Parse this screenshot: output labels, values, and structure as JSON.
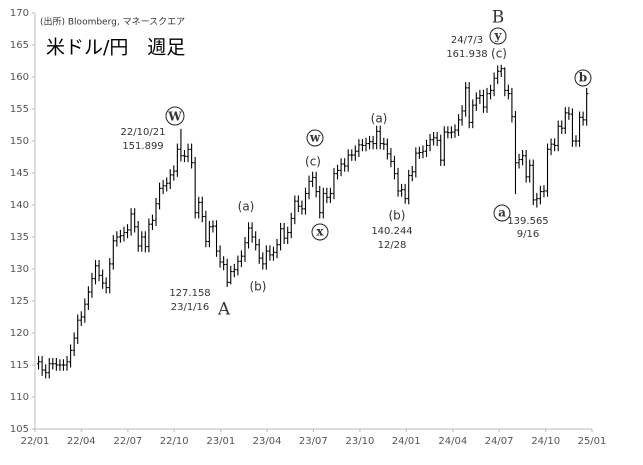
{
  "chart_data": {
    "type": "ohlc",
    "title": "米ドル/円　週足",
    "source": "(出所) Bloomberg, マネースクエア",
    "color": "#000000",
    "grid": false,
    "xlim": [
      0,
      156.5
    ],
    "ylim": [
      105,
      170
    ],
    "xticks": [
      {
        "value": 0,
        "label": "22/01"
      },
      {
        "value": 13,
        "label": "22/04"
      },
      {
        "value": 26.1,
        "label": "22/07"
      },
      {
        "value": 39.1,
        "label": "22/10"
      },
      {
        "value": 52.2,
        "label": "23/01"
      },
      {
        "value": 65.2,
        "label": "23/04"
      },
      {
        "value": 78.2,
        "label": "23/07"
      },
      {
        "value": 91.3,
        "label": "23/10"
      },
      {
        "value": 104.3,
        "label": "24/01"
      },
      {
        "value": 117.4,
        "label": "24/04"
      },
      {
        "value": 130.4,
        "label": "24/07"
      },
      {
        "value": 143.5,
        "label": "24/10"
      },
      {
        "value": 156.5,
        "label": "25/01"
      }
    ],
    "yticks": [
      105,
      110,
      115,
      120,
      125,
      130,
      135,
      140,
      145,
      150,
      155,
      160,
      165,
      170
    ],
    "annotations": [
      "W",
      "22/10/21",
      "151.899",
      "127.158",
      "23/1/16",
      "A",
      "(a)",
      "(b)",
      "w",
      "(c)",
      "x",
      "(a)",
      "(b)",
      "140.244",
      "12/28",
      "B",
      "y",
      "24/7/3",
      "161.938",
      "(c)",
      "a",
      "139.565",
      "9/16",
      "b"
    ],
    "x": [
      1,
      2,
      3,
      4,
      5,
      6,
      7,
      8,
      9,
      10,
      11,
      12,
      13,
      14,
      15,
      16,
      17,
      18,
      19,
      20,
      21,
      22,
      23,
      24,
      25,
      26,
      27,
      28,
      29,
      30,
      31,
      32,
      33,
      34,
      35,
      36,
      37,
      38,
      39,
      40,
      41,
      42,
      43,
      44,
      45,
      46,
      47,
      48,
      49,
      50,
      51,
      52,
      53,
      54,
      55,
      56,
      57,
      58,
      59,
      60,
      61,
      62,
      63,
      64,
      65,
      66,
      67,
      68,
      69,
      70,
      71,
      72,
      73,
      74,
      75,
      76,
      77,
      78,
      79,
      80,
      81,
      82,
      83,
      84,
      85,
      86,
      87,
      88,
      89,
      90,
      91,
      92,
      93,
      94,
      95,
      96,
      97,
      98,
      99,
      100,
      101,
      102,
      103,
      104,
      105,
      106,
      107,
      108,
      109,
      110,
      111,
      112,
      113,
      114,
      115,
      116,
      117,
      118,
      119,
      120,
      121,
      122,
      123,
      124,
      125,
      126,
      127,
      128,
      129,
      130,
      131,
      132,
      133,
      134,
      135,
      136,
      137,
      138,
      139,
      140,
      141,
      142,
      143,
      144,
      145,
      146,
      147,
      148,
      149,
      150,
      151,
      152,
      153,
      154,
      155
    ],
    "open": [
      115.2,
      115.5,
      114.2,
      113.8,
      115.2,
      115.2,
      115.0,
      115.0,
      115.0,
      115.5,
      117.3,
      119.2,
      122.0,
      122.5,
      124.5,
      126.4,
      128.5,
      130.5,
      129.0,
      127.8,
      127.1,
      130.8,
      134.4,
      135.0,
      135.2,
      135.7,
      136.1,
      138.6,
      136.6,
      133.6,
      135.0,
      133.5,
      137.0,
      137.6,
      140.2,
      142.6,
      143.0,
      143.4,
      144.7,
      145.3,
      148.7,
      147.7,
      147.6,
      148.7,
      146.6,
      138.8,
      140.4,
      138.2,
      134.3,
      136.6,
      136.7,
      132.8,
      131.1,
      130.7,
      127.9,
      129.6,
      129.9,
      131.2,
      132.0,
      134.1,
      136.4,
      135.0,
      133.8,
      131.7,
      130.8,
      132.8,
      132.2,
      132.6,
      133.8,
      136.3,
      134.8,
      135.7,
      137.9,
      140.6,
      139.8,
      139.4,
      141.8,
      143.7,
      144.3,
      142.1,
      138.8,
      141.8,
      141.2,
      141.8,
      144.9,
      145.4,
      146.4,
      146.1,
      147.8,
      147.8,
      148.4,
      149.4,
      149.3,
      149.6,
      149.9,
      149.6,
      151.5,
      149.6,
      149.5,
      148.0,
      146.8,
      144.9,
      142.2,
      142.4,
      141.0,
      144.6,
      145.2,
      148.1,
      148.2,
      148.4,
      149.3,
      150.2,
      150.5,
      150.1,
      147.0,
      151.4,
      151.3,
      151.4,
      151.7,
      153.3,
      154.7,
      158.3,
      152.9,
      155.6,
      156.7,
      157.1,
      155.3,
      157.4,
      157.9,
      159.8,
      160.9,
      161.3,
      157.9,
      157.4,
      153.8,
      146.6,
      147.1,
      147.7,
      144.4,
      146.2,
      140.8,
      141.0,
      142.1,
      142.2,
      148.7,
      149.5,
      149.3,
      152.3,
      152.0,
      154.4,
      154.2,
      150.0,
      150.0,
      153.7,
      153.3
    ],
    "high": [
      116.4,
      116.4,
      115.1,
      116.1,
      116.1,
      116.1,
      115.9,
      115.9,
      116.4,
      118.2,
      120.1,
      122.9,
      123.4,
      125.4,
      127.3,
      129.4,
      131.4,
      131.4,
      129.9,
      128.7,
      131.7,
      135.3,
      135.9,
      136.1,
      136.6,
      137.0,
      139.5,
      139.5,
      137.5,
      135.9,
      135.9,
      137.9,
      138.5,
      141.1,
      143.5,
      143.9,
      144.3,
      145.6,
      146.2,
      149.6,
      151.9,
      148.6,
      149.6,
      149.6,
      147.5,
      141.3,
      141.3,
      139.1,
      137.5,
      137.6,
      137.6,
      133.7,
      132.0,
      131.6,
      130.5,
      130.8,
      132.1,
      132.9,
      135.0,
      137.3,
      137.3,
      135.9,
      134.7,
      132.6,
      133.7,
      133.7,
      133.5,
      134.7,
      137.2,
      137.2,
      136.6,
      138.8,
      141.5,
      141.5,
      140.7,
      142.7,
      144.6,
      145.2,
      145.2,
      143.0,
      142.7,
      142.7,
      142.7,
      145.8,
      146.3,
      147.3,
      147.3,
      148.7,
      148.7,
      149.3,
      150.3,
      150.3,
      150.5,
      150.8,
      150.8,
      152.4,
      152.4,
      150.5,
      150.4,
      148.9,
      147.7,
      145.8,
      143.3,
      143.3,
      145.5,
      146.1,
      149.0,
      149.1,
      149.3,
      150.2,
      151.1,
      151.4,
      151.4,
      151.0,
      152.3,
      152.3,
      152.3,
      152.6,
      154.2,
      155.6,
      159.2,
      159.2,
      156.5,
      157.6,
      158.0,
      158.0,
      158.3,
      158.8,
      160.7,
      161.8,
      161.9,
      161.5,
      158.8,
      158.3,
      154.7,
      148.0,
      148.6,
      148.6,
      147.1,
      147.1,
      141.9,
      143.0,
      143.1,
      149.6,
      150.4,
      150.4,
      153.2,
      153.2,
      155.3,
      155.3,
      155.1,
      150.9,
      154.6,
      154.6,
      158.3
    ],
    "low": [
      114.3,
      113.3,
      112.9,
      112.9,
      114.3,
      114.1,
      114.1,
      114.1,
      114.1,
      114.6,
      116.4,
      118.3,
      121.1,
      121.6,
      123.6,
      125.5,
      127.6,
      128.1,
      126.9,
      126.2,
      126.2,
      129.9,
      133.5,
      134.1,
      134.3,
      134.8,
      135.2,
      135.7,
      132.7,
      132.7,
      132.6,
      132.6,
      136.1,
      136.7,
      139.3,
      141.7,
      142.1,
      142.5,
      143.8,
      144.4,
      146.8,
      146.7,
      146.7,
      145.7,
      137.9,
      137.9,
      137.3,
      133.4,
      133.4,
      135.7,
      131.9,
      130.2,
      129.8,
      127.2,
      127.6,
      128.7,
      129.0,
      130.3,
      131.1,
      133.2,
      134.1,
      132.9,
      130.8,
      129.9,
      129.9,
      131.3,
      131.3,
      131.7,
      132.9,
      133.9,
      133.9,
      134.8,
      137.0,
      138.9,
      138.5,
      138.5,
      140.9,
      142.8,
      141.2,
      137.9,
      137.9,
      140.3,
      140.3,
      140.9,
      144.0,
      144.5,
      145.2,
      145.2,
      146.9,
      146.9,
      147.5,
      148.4,
      148.4,
      148.7,
      148.7,
      148.7,
      148.7,
      148.6,
      147.1,
      145.9,
      144.0,
      141.3,
      141.3,
      140.2,
      140.1,
      143.7,
      144.3,
      147.2,
      147.3,
      147.5,
      148.4,
      149.3,
      149.2,
      146.1,
      146.1,
      150.4,
      150.4,
      150.5,
      150.8,
      152.4,
      153.8,
      152.0,
      152.0,
      154.7,
      155.8,
      154.4,
      154.4,
      156.5,
      157.0,
      158.9,
      160.0,
      157.0,
      156.5,
      152.9,
      141.7,
      145.7,
      146.2,
      143.5,
      143.5,
      140.0,
      139.6,
      140.1,
      141.2,
      141.3,
      147.8,
      148.4,
      148.4,
      151.1,
      151.1,
      153.3,
      149.1,
      149.1,
      149.1,
      152.4,
      152.4
    ],
    "close": [
      115.5,
      114.2,
      113.8,
      115.2,
      115.2,
      115.0,
      115.0,
      115.0,
      115.5,
      117.3,
      119.2,
      122.0,
      122.5,
      124.5,
      126.4,
      128.5,
      130.5,
      129.0,
      127.8,
      127.1,
      130.8,
      134.4,
      135.0,
      135.2,
      135.7,
      136.1,
      138.6,
      136.6,
      133.6,
      135.0,
      133.5,
      137.0,
      137.6,
      140.2,
      142.6,
      143.0,
      143.4,
      144.7,
      145.3,
      148.7,
      147.7,
      147.6,
      148.7,
      146.6,
      138.8,
      140.4,
      138.2,
      134.3,
      136.6,
      136.7,
      132.8,
      131.1,
      130.7,
      127.9,
      129.6,
      129.9,
      131.2,
      132.0,
      134.1,
      136.4,
      135.0,
      133.8,
      131.7,
      130.8,
      132.8,
      132.2,
      132.6,
      133.8,
      136.3,
      134.8,
      135.7,
      137.9,
      140.6,
      139.8,
      139.4,
      141.8,
      143.7,
      144.3,
      142.1,
      138.8,
      141.8,
      141.2,
      141.8,
      144.9,
      145.4,
      146.4,
      146.1,
      147.8,
      147.8,
      148.4,
      149.4,
      149.3,
      149.6,
      149.9,
      149.6,
      151.5,
      149.6,
      149.5,
      148.0,
      146.8,
      144.9,
      142.2,
      142.4,
      141.0,
      144.6,
      145.2,
      148.1,
      148.2,
      148.4,
      149.3,
      150.2,
      150.5,
      150.1,
      147.0,
      151.4,
      151.3,
      151.4,
      151.7,
      153.3,
      154.7,
      158.3,
      152.9,
      155.6,
      156.7,
      157.1,
      155.3,
      157.4,
      157.9,
      159.8,
      160.9,
      161.3,
      157.9,
      157.4,
      153.8,
      146.6,
      147.1,
      147.7,
      144.4,
      146.2,
      140.8,
      141.0,
      142.1,
      142.2,
      148.7,
      149.5,
      149.3,
      152.3,
      152.0,
      154.4,
      154.2,
      150.0,
      150.0,
      153.7,
      153.3,
      157.4
    ]
  }
}
